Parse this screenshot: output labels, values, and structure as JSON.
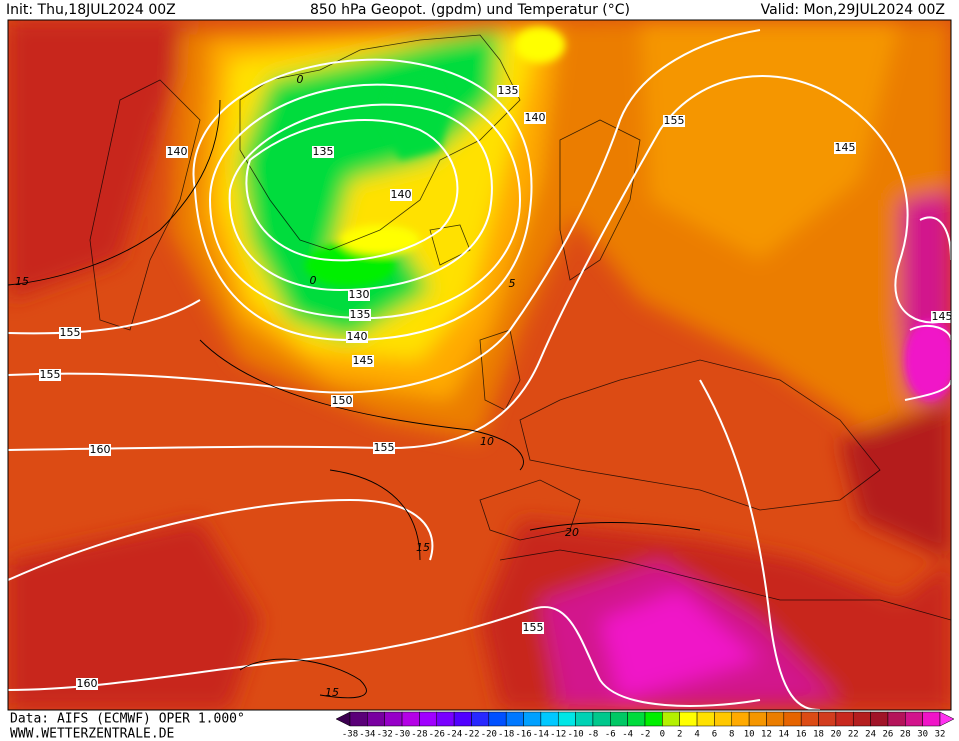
{
  "header": {
    "init": "Init: Thu,18JUL2024 00Z",
    "title": "850 hPa Geopot. (gpdm) und Temperatur (°C)",
    "valid": "Valid: Mon,29JUL2024 00Z"
  },
  "map": {
    "geopotential_labels": [
      135,
      140,
      140,
      135,
      155,
      145,
      140,
      130,
      135,
      140,
      145,
      150,
      155,
      160,
      155,
      155,
      155,
      160,
      145
    ],
    "temperature_labels": [
      0,
      0,
      15,
      10,
      15,
      15,
      20,
      5
    ]
  },
  "colorbar": {
    "labels": [
      -38,
      -34,
      -32,
      -30,
      -28,
      -26,
      -24,
      -22,
      -20,
      -18,
      -16,
      -14,
      -12,
      -10,
      -8,
      -6,
      -4,
      -2,
      0,
      2,
      4,
      6,
      8,
      10,
      12,
      14,
      16,
      18,
      20,
      22,
      24,
      26,
      28,
      30,
      32
    ],
    "colors": [
      "#3c0050",
      "#5a0078",
      "#7800a0",
      "#9600c8",
      "#b400e6",
      "#a000ff",
      "#7800ff",
      "#5000ff",
      "#2828ff",
      "#0050ff",
      "#0078ff",
      "#00a0ff",
      "#00c8ff",
      "#00e6e6",
      "#00d2b4",
      "#00c88c",
      "#00c864",
      "#00dc3c",
      "#00f000",
      "#b4f000",
      "#ffff00",
      "#ffe100",
      "#ffc800",
      "#ffaa00",
      "#f59600",
      "#eb7d00",
      "#e66400",
      "#dc4b14",
      "#d23c1e",
      "#c8281e",
      "#b41e1e",
      "#a01428",
      "#b4145a",
      "#d2148c",
      "#f014c8",
      "#ff32f0"
    ]
  },
  "footer": {
    "data": "Data: AIFS (ECMWF) OPER 1.000°",
    "site": "WWW.WETTERZENTRALE.DE"
  }
}
